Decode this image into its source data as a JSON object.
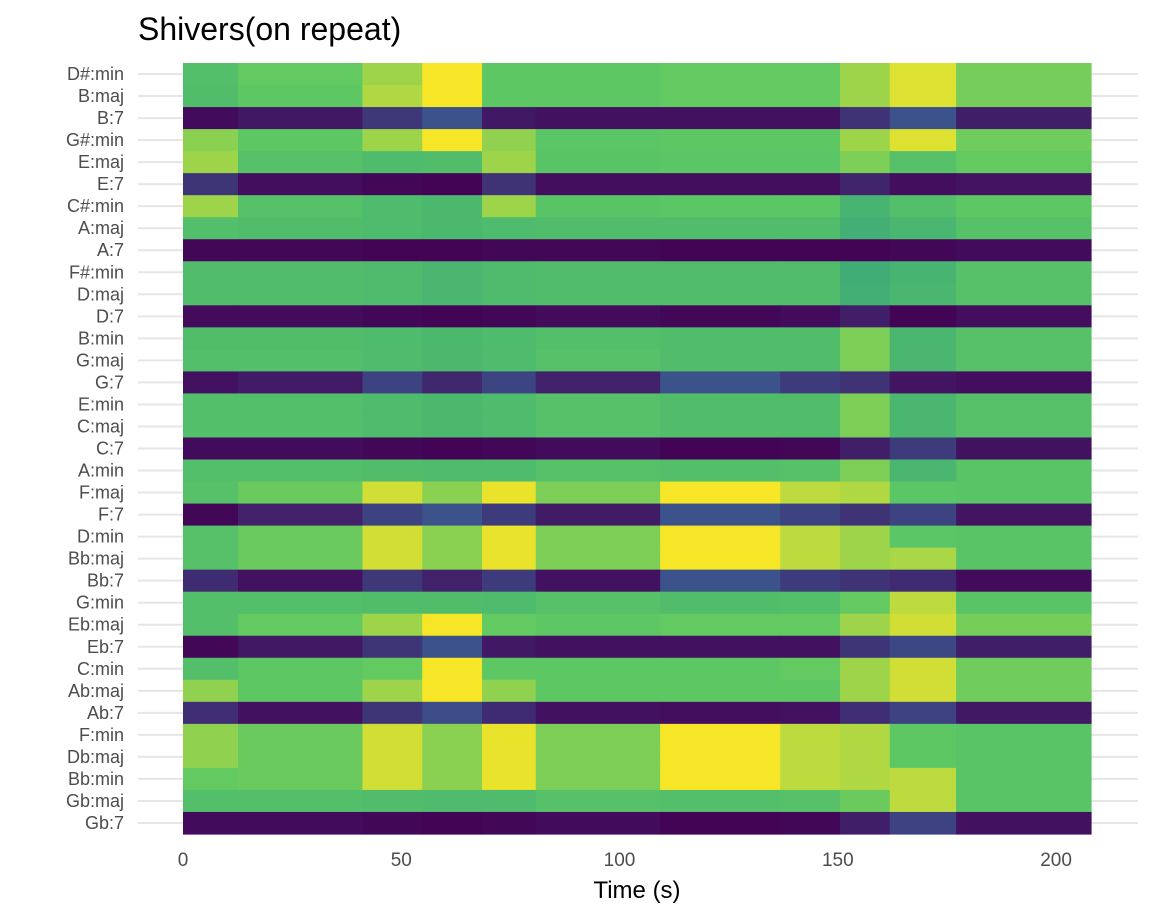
{
  "chart_data": {
    "type": "heatmap",
    "title": "Shivers(on repeat)",
    "xlabel": "Time (s)",
    "ylabel": "",
    "xlim": [
      0,
      208
    ],
    "x_ticks": [
      0,
      50,
      100,
      150,
      200
    ],
    "segment_edges": [
      0,
      12.6,
      41.1,
      54.8,
      68.5,
      80.8,
      109.3,
      136.8,
      150.5,
      161.9,
      177.1,
      208
    ],
    "grid": "horizontal",
    "legend": "none",
    "colormap": [
      "#440154",
      "#3b528b",
      "#21908c",
      "#5dc863",
      "#fde725"
    ],
    "chords": [
      "D#:min",
      "B:maj",
      "B:7",
      "G#:min",
      "E:maj",
      "E:7",
      "C#:min",
      "A:maj",
      "A:7",
      "F#:min",
      "D:maj",
      "D:7",
      "B:min",
      "G:maj",
      "G:7",
      "E:min",
      "C:maj",
      "C:7",
      "A:min",
      "F:maj",
      "F:7",
      "D:min",
      "Bb:maj",
      "Bb:7",
      "G:min",
      "Eb:maj",
      "Eb:7",
      "C:min",
      "Ab:maj",
      "Ab:7",
      "F:min",
      "Db:maj",
      "Bb:min",
      "Gb:maj",
      "Gb:7"
    ],
    "values": [
      [
        0.71,
        0.76,
        0.85,
        0.99,
        0.75,
        0.75,
        0.76,
        0.76,
        0.85,
        0.95,
        0.79
      ],
      [
        0.7,
        0.75,
        0.88,
        0.99,
        0.75,
        0.75,
        0.76,
        0.76,
        0.85,
        0.95,
        0.79
      ],
      [
        0.03,
        0.07,
        0.17,
        0.25,
        0.07,
        0.05,
        0.05,
        0.05,
        0.15,
        0.25,
        0.09
      ],
      [
        0.82,
        0.75,
        0.85,
        0.99,
        0.83,
        0.74,
        0.75,
        0.75,
        0.85,
        0.95,
        0.78
      ],
      [
        0.85,
        0.72,
        0.69,
        0.7,
        0.85,
        0.73,
        0.74,
        0.74,
        0.8,
        0.72,
        0.76
      ],
      [
        0.16,
        0.04,
        0.02,
        0.01,
        0.15,
        0.04,
        0.04,
        0.04,
        0.11,
        0.04,
        0.06
      ],
      [
        0.85,
        0.72,
        0.69,
        0.68,
        0.85,
        0.73,
        0.74,
        0.74,
        0.66,
        0.71,
        0.75
      ],
      [
        0.71,
        0.7,
        0.69,
        0.68,
        0.69,
        0.7,
        0.7,
        0.7,
        0.64,
        0.67,
        0.72
      ],
      [
        0.02,
        0.02,
        0.01,
        0.01,
        0.02,
        0.02,
        0.01,
        0.01,
        0.01,
        0.02,
        0.03
      ],
      [
        0.7,
        0.7,
        0.69,
        0.67,
        0.69,
        0.7,
        0.7,
        0.7,
        0.63,
        0.66,
        0.72
      ],
      [
        0.7,
        0.7,
        0.69,
        0.67,
        0.69,
        0.7,
        0.7,
        0.7,
        0.64,
        0.67,
        0.72
      ],
      [
        0.03,
        0.03,
        0.02,
        0.01,
        0.02,
        0.03,
        0.02,
        0.03,
        0.09,
        0.01,
        0.04
      ],
      [
        0.7,
        0.7,
        0.69,
        0.68,
        0.69,
        0.71,
        0.7,
        0.7,
        0.8,
        0.67,
        0.72
      ],
      [
        0.71,
        0.71,
        0.69,
        0.68,
        0.69,
        0.72,
        0.7,
        0.7,
        0.8,
        0.67,
        0.72
      ],
      [
        0.05,
        0.08,
        0.2,
        0.12,
        0.21,
        0.1,
        0.25,
        0.18,
        0.15,
        0.06,
        0.04
      ],
      [
        0.71,
        0.71,
        0.69,
        0.68,
        0.69,
        0.72,
        0.7,
        0.7,
        0.8,
        0.67,
        0.72
      ],
      [
        0.71,
        0.71,
        0.69,
        0.68,
        0.69,
        0.72,
        0.7,
        0.7,
        0.8,
        0.67,
        0.72
      ],
      [
        0.03,
        0.03,
        0.02,
        0.01,
        0.02,
        0.03,
        0.01,
        0.02,
        0.09,
        0.18,
        0.05
      ],
      [
        0.71,
        0.71,
        0.7,
        0.69,
        0.69,
        0.72,
        0.71,
        0.72,
        0.8,
        0.67,
        0.73
      ],
      [
        0.72,
        0.77,
        0.93,
        0.82,
        0.97,
        0.8,
        0.99,
        0.9,
        0.88,
        0.74,
        0.73
      ],
      [
        0.02,
        0.1,
        0.2,
        0.25,
        0.18,
        0.08,
        0.25,
        0.2,
        0.15,
        0.2,
        0.06
      ],
      [
        0.72,
        0.77,
        0.93,
        0.82,
        0.97,
        0.8,
        0.99,
        0.9,
        0.85,
        0.74,
        0.73
      ],
      [
        0.72,
        0.77,
        0.93,
        0.82,
        0.97,
        0.8,
        0.99,
        0.9,
        0.85,
        0.87,
        0.73
      ],
      [
        0.13,
        0.05,
        0.17,
        0.1,
        0.18,
        0.05,
        0.25,
        0.18,
        0.15,
        0.13,
        0.03
      ],
      [
        0.71,
        0.71,
        0.7,
        0.7,
        0.69,
        0.72,
        0.7,
        0.71,
        0.76,
        0.9,
        0.73
      ],
      [
        0.71,
        0.76,
        0.85,
        0.99,
        0.76,
        0.75,
        0.76,
        0.76,
        0.85,
        0.93,
        0.79
      ],
      [
        0.02,
        0.07,
        0.16,
        0.25,
        0.07,
        0.05,
        0.05,
        0.05,
        0.16,
        0.22,
        0.09
      ],
      [
        0.71,
        0.75,
        0.76,
        0.99,
        0.75,
        0.75,
        0.75,
        0.76,
        0.85,
        0.93,
        0.78
      ],
      [
        0.83,
        0.75,
        0.85,
        0.99,
        0.83,
        0.75,
        0.75,
        0.75,
        0.85,
        0.93,
        0.78
      ],
      [
        0.14,
        0.05,
        0.16,
        0.23,
        0.13,
        0.05,
        0.04,
        0.05,
        0.14,
        0.2,
        0.07
      ],
      [
        0.83,
        0.77,
        0.93,
        0.82,
        0.97,
        0.8,
        0.99,
        0.9,
        0.88,
        0.75,
        0.73
      ],
      [
        0.83,
        0.77,
        0.93,
        0.82,
        0.97,
        0.8,
        0.99,
        0.9,
        0.88,
        0.75,
        0.73
      ],
      [
        0.76,
        0.77,
        0.93,
        0.82,
        0.97,
        0.8,
        0.99,
        0.9,
        0.88,
        0.9,
        0.73
      ],
      [
        0.71,
        0.71,
        0.7,
        0.69,
        0.69,
        0.72,
        0.71,
        0.72,
        0.77,
        0.9,
        0.73
      ],
      [
        0.03,
        0.03,
        0.02,
        0.01,
        0.02,
        0.03,
        0.01,
        0.02,
        0.09,
        0.2,
        0.05
      ]
    ]
  }
}
